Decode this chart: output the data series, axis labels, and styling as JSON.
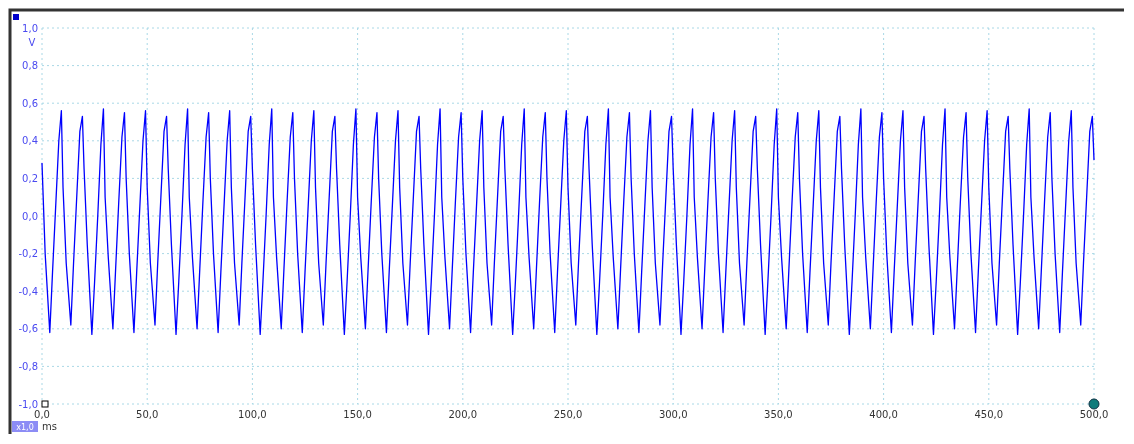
{
  "chart_data": {
    "type": "line",
    "xlabel": "ms",
    "ylabel": "V",
    "annotations": [
      "x1,0"
    ],
    "grid": true,
    "xlim": [
      0,
      500
    ],
    "ylim": [
      -1,
      1
    ],
    "xticks": [
      {
        "value": 0,
        "label": "0,0"
      },
      {
        "value": 50,
        "label": "50,0"
      },
      {
        "value": 100,
        "label": "100,0"
      },
      {
        "value": 150,
        "label": "150,0"
      },
      {
        "value": 200,
        "label": "200,0"
      },
      {
        "value": 250,
        "label": "250,0"
      },
      {
        "value": 300,
        "label": "300,0"
      },
      {
        "value": 350,
        "label": "350,0"
      },
      {
        "value": 400,
        "label": "400,0"
      },
      {
        "value": 450,
        "label": "450,0"
      },
      {
        "value": 500,
        "label": "500,0"
      }
    ],
    "yticks": [
      {
        "value": -1,
        "label": "-1,0"
      },
      {
        "value": -0.8,
        "label": "-0,8"
      },
      {
        "value": -0.6,
        "label": "-0,6"
      },
      {
        "value": -0.4,
        "label": "-0,4"
      },
      {
        "value": -0.2,
        "label": "-0,2"
      },
      {
        "value": 0,
        "label": "0,0"
      },
      {
        "value": 0.2,
        "label": "0,2"
      },
      {
        "value": 0.4,
        "label": "0,4"
      },
      {
        "value": 0.6,
        "label": "0,6"
      },
      {
        "value": 0.8,
        "label": "0,8"
      },
      {
        "value": 1,
        "label": "1,0"
      }
    ],
    "series": [
      {
        "color": "#0000ff",
        "x": [
          0,
          1.5,
          3.7,
          5,
          6.5,
          8,
          9.2,
          10,
          11.5,
          13.7,
          15,
          16.5,
          18,
          19.2,
          20,
          21.5,
          23.7,
          25,
          26.5,
          28,
          29.2,
          30,
          31.5,
          33.7,
          35,
          36.5,
          38,
          39.2,
          40,
          41.5,
          43.7,
          45,
          46.5,
          48,
          49.2,
          50,
          51.5,
          53.7,
          55,
          56.5,
          58,
          59.2,
          60,
          61.5,
          63.7,
          65,
          66.5,
          68,
          69.2,
          70,
          71.5,
          73.7,
          75,
          76.5,
          78,
          79.2,
          80,
          81.5,
          83.7,
          85,
          86.5,
          88,
          89.2,
          90,
          91.5,
          93.7,
          95,
          96.5,
          98,
          99.2,
          100,
          101.5,
          103.7,
          105,
          106.5,
          108,
          109.2,
          110,
          111.5,
          113.7,
          115,
          116.5,
          118,
          119.2,
          120,
          121.5,
          123.7,
          125,
          126.5,
          128,
          129.2,
          130,
          131.5,
          133.7,
          135,
          136.5,
          138,
          139.2,
          140,
          141.5,
          143.7,
          145,
          146.5,
          148,
          149.2,
          150,
          151.5,
          153.7,
          155,
          156.5,
          158,
          159.2,
          160,
          161.5,
          163.7,
          165,
          166.5,
          168,
          169.2,
          170,
          171.5,
          173.7,
          175,
          176.5,
          178,
          179.2,
          180,
          181.5,
          183.7,
          185,
          186.5,
          188,
          189.2,
          190,
          191.5,
          193.7,
          195,
          196.5,
          198,
          199.2,
          200,
          201.5,
          203.7,
          205,
          206.5,
          208,
          209.2,
          210,
          211.5,
          213.7,
          215,
          216.5,
          218,
          219.2,
          220,
          221.5,
          223.7,
          225,
          226.5,
          228,
          229.2,
          230,
          231.5,
          233.7,
          235,
          236.5,
          238,
          239.2,
          240,
          241.5,
          243.7,
          245,
          246.5,
          248,
          249.2,
          250,
          251.5,
          253.7,
          255,
          256.5,
          258,
          259.2,
          260,
          261.5,
          263.7,
          265,
          266.5,
          268,
          269.2,
          270,
          271.5,
          273.7,
          275,
          276.5,
          278,
          279.2,
          280,
          281.5,
          283.7,
          285,
          286.5,
          288,
          289.2,
          290,
          291.5,
          293.7,
          295,
          296.5,
          298,
          299.2,
          300,
          301.5,
          303.7,
          305,
          306.5,
          308,
          309.2,
          310,
          311.5,
          313.7,
          315,
          316.5,
          318,
          319.2,
          320,
          321.5,
          323.7,
          325,
          326.5,
          328,
          329.2,
          330,
          331.5,
          333.7,
          335,
          336.5,
          338,
          339.2,
          340,
          341.5,
          343.7,
          345,
          346.5,
          348,
          349.2,
          350,
          351.5,
          353.7,
          355,
          356.5,
          358,
          359.2,
          360,
          361.5,
          363.7,
          365,
          366.5,
          368,
          369.2,
          370,
          371.5,
          373.7,
          375,
          376.5,
          378,
          379.2,
          380,
          381.5,
          383.7,
          385,
          386.5,
          388,
          389.2,
          390,
          391.5,
          393.7,
          395,
          396.5,
          398,
          399.2,
          400,
          401.5,
          403.7,
          405,
          406.5,
          408,
          409.2,
          410,
          411.5,
          413.7,
          415,
          416.5,
          418,
          419.2,
          420,
          421.5,
          423.7,
          425,
          426.5,
          428,
          429.2,
          430,
          431.5,
          433.7,
          435,
          436.5,
          438,
          439.2,
          440,
          441.5,
          443.7,
          445,
          446.5,
          448,
          449.2,
          450,
          451.5,
          453.7,
          455,
          456.5,
          458,
          459.2,
          460,
          461.5,
          463.7,
          465,
          466.5,
          468,
          469.2,
          470,
          471.5,
          473.7,
          475,
          476.5,
          478,
          479.2,
          480,
          481.5,
          483.7,
          485,
          486.5,
          488,
          489.2,
          490,
          491.5,
          493.7,
          495,
          496.5,
          498,
          499.2,
          500
        ],
        "values": [
          0.28,
          -0.2,
          -0.62,
          -0.3,
          0.05,
          0.4,
          0.56,
          0.15,
          -0.25,
          -0.58,
          -0.25,
          0.1,
          0.45,
          0.53,
          0.25,
          -0.15,
          -0.63,
          -0.35,
          0,
          0.38,
          0.57,
          0.1,
          -0.22,
          -0.6,
          -0.28,
          0.08,
          0.42,
          0.55,
          0.2,
          -0.2,
          -0.62,
          -0.3,
          0.05,
          0.4,
          0.56,
          0.15,
          -0.25,
          -0.58,
          -0.25,
          0.1,
          0.45,
          0.53,
          0.25,
          -0.15,
          -0.63,
          -0.35,
          0,
          0.38,
          0.57,
          0.1,
          -0.22,
          -0.6,
          -0.28,
          0.08,
          0.42,
          0.55,
          0.2,
          -0.2,
          -0.62,
          -0.3,
          0.05,
          0.4,
          0.56,
          0.15,
          -0.25,
          -0.58,
          -0.25,
          0.1,
          0.45,
          0.53,
          0.25,
          -0.15,
          -0.63,
          -0.35,
          0,
          0.38,
          0.57,
          0.1,
          -0.22,
          -0.6,
          -0.28,
          0.08,
          0.42,
          0.55,
          0.2,
          -0.2,
          -0.62,
          -0.3,
          0.05,
          0.4,
          0.56,
          0.15,
          -0.25,
          -0.58,
          -0.25,
          0.1,
          0.45,
          0.53,
          0.25,
          -0.15,
          -0.63,
          -0.35,
          0,
          0.38,
          0.57,
          0.1,
          -0.22,
          -0.6,
          -0.28,
          0.08,
          0.42,
          0.55,
          0.2,
          -0.2,
          -0.62,
          -0.3,
          0.05,
          0.4,
          0.56,
          0.15,
          -0.25,
          -0.58,
          -0.25,
          0.1,
          0.45,
          0.53,
          0.25,
          -0.15,
          -0.63,
          -0.35,
          0,
          0.38,
          0.57,
          0.1,
          -0.22,
          -0.6,
          -0.28,
          0.08,
          0.42,
          0.55,
          0.2,
          -0.2,
          -0.62,
          -0.3,
          0.05,
          0.4,
          0.56,
          0.15,
          -0.25,
          -0.58,
          -0.25,
          0.1,
          0.45,
          0.53,
          0.25,
          -0.15,
          -0.63,
          -0.35,
          0,
          0.38,
          0.57,
          0.1,
          -0.22,
          -0.6,
          -0.28,
          0.08,
          0.42,
          0.55,
          0.2,
          -0.2,
          -0.62,
          -0.3,
          0.05,
          0.4,
          0.56,
          0.15,
          -0.25,
          -0.58,
          -0.25,
          0.1,
          0.45,
          0.53,
          0.25,
          -0.15,
          -0.63,
          -0.35,
          0,
          0.38,
          0.57,
          0.1,
          -0.22,
          -0.6,
          -0.28,
          0.08,
          0.42,
          0.55,
          0.2,
          -0.2,
          -0.62,
          -0.3,
          0.05,
          0.4,
          0.56,
          0.15,
          -0.25,
          -0.58,
          -0.25,
          0.1,
          0.45,
          0.53,
          0.25,
          -0.15,
          -0.63,
          -0.35,
          0,
          0.38,
          0.57,
          0.1,
          -0.22,
          -0.6,
          -0.28,
          0.08,
          0.42,
          0.55,
          0.2,
          -0.2,
          -0.62,
          -0.3,
          0.05,
          0.4,
          0.56,
          0.15,
          -0.25,
          -0.58,
          -0.25,
          0.1,
          0.45,
          0.53,
          0.25,
          -0.15,
          -0.63,
          -0.35,
          0,
          0.38,
          0.57,
          0.1,
          -0.22,
          -0.6,
          -0.28,
          0.08,
          0.42,
          0.55,
          0.2,
          -0.2,
          -0.62,
          -0.3,
          0.05,
          0.4,
          0.56,
          0.15,
          -0.25,
          -0.58,
          -0.25,
          0.1,
          0.45,
          0.53,
          0.25,
          -0.15,
          -0.63,
          -0.35,
          0,
          0.38,
          0.57,
          0.1,
          -0.22,
          -0.6,
          -0.28,
          0.08,
          0.42,
          0.55,
          0.2,
          -0.2,
          -0.62,
          -0.3,
          0.05,
          0.4,
          0.56,
          0.15,
          -0.25,
          -0.58,
          -0.25,
          0.1,
          0.45,
          0.53,
          0.25,
          -0.15,
          -0.63,
          -0.35,
          0,
          0.38,
          0.57,
          0.1,
          -0.22,
          -0.6,
          -0.28,
          0.08,
          0.42,
          0.55,
          0.2,
          -0.2,
          -0.62,
          -0.3,
          0.05,
          0.4,
          0.56,
          0.15,
          -0.25,
          -0.58,
          -0.25,
          0.1,
          0.45,
          0.53,
          0.25,
          -0.15,
          -0.63,
          -0.35,
          0,
          0.38,
          0.57,
          0.1,
          -0.22,
          -0.6,
          -0.28,
          0.08,
          0.42,
          0.55,
          0.2,
          -0.2,
          -0.62,
          -0.3,
          0.05,
          0.4,
          0.56,
          0.15,
          -0.25,
          -0.58,
          -0.25,
          0.1,
          0.45,
          0.53,
          0.3
        ]
      }
    ]
  }
}
